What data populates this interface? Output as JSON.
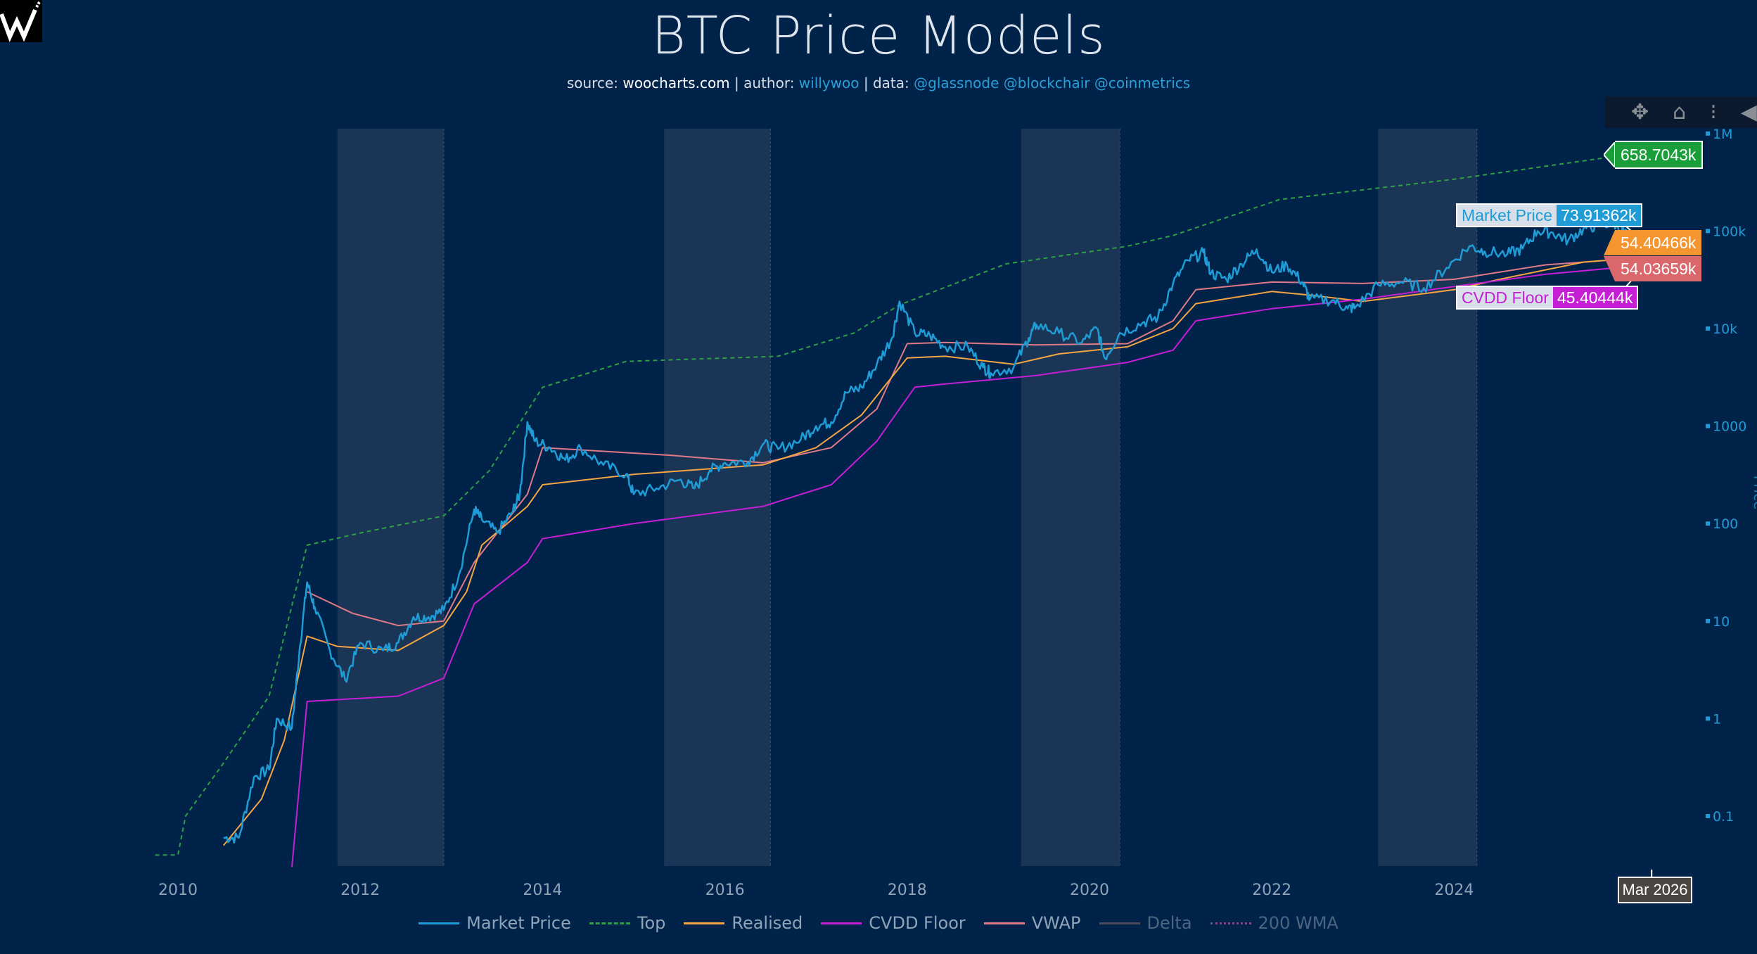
{
  "header": {
    "title": "BTC Price Models",
    "subtitle": {
      "source_label": "source:",
      "source": "woocharts.com",
      "author_label": "author:",
      "author": "willywoo",
      "data_label": "data:",
      "data_sources": "@glassnode @blockchair @coinmetrics"
    }
  },
  "toolbar": {
    "icons": [
      "move-icon",
      "home-icon",
      "spike-lines-icon",
      "collapse-arrow-icon"
    ]
  },
  "colors": {
    "background": "#01234a",
    "band": "#1b3556",
    "market_price": "#1f9bd6",
    "top": "#2ea043",
    "realised": "#f5a542",
    "cvdd": "#c51fd6",
    "vwap": "#e07a86",
    "delta": "#5a5a6a",
    "wma200": "#a050a0"
  },
  "chart_data": {
    "type": "line",
    "title": "BTC Price Models",
    "ylabel": "Price",
    "yscale": "log",
    "ylim": [
      0.03,
      1500000
    ],
    "xlim": [
      "2009-06",
      "2026-09"
    ],
    "x_ticks": [
      "2010",
      "2012",
      "2014",
      "2016",
      "2018",
      "2020",
      "2022",
      "2024"
    ],
    "y_ticks": [
      {
        "value": 0.1,
        "label": "0.1"
      },
      {
        "value": 1,
        "label": "1"
      },
      {
        "value": 10,
        "label": "10"
      },
      {
        "value": 100,
        "label": "100"
      },
      {
        "value": 1000,
        "label": "1000"
      },
      {
        "value": 10000,
        "label": "10k"
      },
      {
        "value": 100000,
        "label": "100k"
      },
      {
        "value": 1000000,
        "label": "1M"
      }
    ],
    "shaded_periods": [
      [
        "2011-10",
        "2012-12"
      ],
      [
        "2015-05",
        "2016-07"
      ],
      [
        "2019-04",
        "2020-05"
      ],
      [
        "2023-03",
        "2024-04"
      ]
    ],
    "legend_position": "bottom",
    "series": [
      {
        "name": "Market Price",
        "key": "market_price",
        "dash": "solid",
        "points": [
          [
            "2010-07",
            0.06
          ],
          [
            "2010-09",
            0.06
          ],
          [
            "2010-11",
            0.25
          ],
          [
            "2011-01",
            0.3
          ],
          [
            "2011-02",
            1
          ],
          [
            "2011-04",
            0.8
          ],
          [
            "2011-05",
            5
          ],
          [
            "2011-06",
            25
          ],
          [
            "2011-07",
            14
          ],
          [
            "2011-09",
            5
          ],
          [
            "2011-11",
            2.5
          ],
          [
            "2012-01",
            6
          ],
          [
            "2012-04",
            5
          ],
          [
            "2012-06",
            6
          ],
          [
            "2012-08",
            11
          ],
          [
            "2012-10",
            11
          ],
          [
            "2012-12",
            13
          ],
          [
            "2013-02",
            30
          ],
          [
            "2013-04",
            140
          ],
          [
            "2013-05",
            110
          ],
          [
            "2013-07",
            80
          ],
          [
            "2013-09",
            130
          ],
          [
            "2013-10",
            200
          ],
          [
            "2013-11",
            1100
          ],
          [
            "2013-12",
            700
          ],
          [
            "2014-02",
            600
          ],
          [
            "2014-04",
            450
          ],
          [
            "2014-06",
            600
          ],
          [
            "2014-09",
            400
          ],
          [
            "2014-12",
            320
          ],
          [
            "2015-01",
            200
          ],
          [
            "2015-04",
            230
          ],
          [
            "2015-07",
            280
          ],
          [
            "2015-09",
            230
          ],
          [
            "2015-11",
            350
          ],
          [
            "2016-01",
            420
          ],
          [
            "2016-04",
            430
          ],
          [
            "2016-06",
            650
          ],
          [
            "2016-08",
            580
          ],
          [
            "2016-11",
            730
          ],
          [
            "2017-01",
            1000
          ],
          [
            "2017-03",
            1100
          ],
          [
            "2017-05",
            2200
          ],
          [
            "2017-07",
            2500
          ],
          [
            "2017-09",
            4300
          ],
          [
            "2017-11",
            8000
          ],
          [
            "2017-12",
            19000
          ],
          [
            "2018-02",
            9000
          ],
          [
            "2018-04",
            8500
          ],
          [
            "2018-06",
            6500
          ],
          [
            "2018-09",
            6500
          ],
          [
            "2018-11",
            4000
          ],
          [
            "2018-12",
            3500
          ],
          [
            "2019-03",
            4000
          ],
          [
            "2019-05",
            8000
          ],
          [
            "2019-06",
            11000
          ],
          [
            "2019-09",
            9000
          ],
          [
            "2019-12",
            7200
          ],
          [
            "2020-02",
            10000
          ],
          [
            "2020-03",
            5000
          ],
          [
            "2020-05",
            9000
          ],
          [
            "2020-08",
            11500
          ],
          [
            "2020-10",
            13000
          ],
          [
            "2020-12",
            29000
          ],
          [
            "2021-02",
            50000
          ],
          [
            "2021-04",
            60000
          ],
          [
            "2021-05",
            37000
          ],
          [
            "2021-07",
            32000
          ],
          [
            "2021-09",
            46000
          ],
          [
            "2021-11",
            65000
          ],
          [
            "2022-01",
            38000
          ],
          [
            "2022-03",
            45000
          ],
          [
            "2022-05",
            30000
          ],
          [
            "2022-06",
            20000
          ],
          [
            "2022-09",
            19500
          ],
          [
            "2022-11",
            16000
          ],
          [
            "2022-12",
            16500
          ],
          [
            "2023-03",
            28000
          ],
          [
            "2023-06",
            30000
          ],
          [
            "2023-09",
            26000
          ],
          [
            "2023-12",
            42000
          ],
          [
            "2024-03",
            70000
          ],
          [
            "2024-05",
            62000
          ],
          [
            "2024-08",
            58000
          ],
          [
            "2024-10",
            66000
          ],
          [
            "2024-12",
            100000
          ],
          [
            "2025-02",
            96000
          ],
          [
            "2025-04",
            80000
          ],
          [
            "2025-06",
            105000
          ],
          [
            "2025-08",
            115000
          ],
          [
            "2025-10",
            120000
          ],
          [
            "2025-12",
            90000
          ],
          [
            "2026-02",
            70000
          ],
          [
            "2026-03",
            73913.62
          ]
        ]
      },
      {
        "name": "Top",
        "key": "top",
        "dash": "dashed",
        "points": [
          [
            "2009-10",
            0.04
          ],
          [
            "2010-01",
            0.04
          ],
          [
            "2010-02",
            0.1
          ],
          [
            "2010-07",
            0.35
          ],
          [
            "2011-01",
            1.7
          ],
          [
            "2011-06",
            60
          ],
          [
            "2012-01",
            80
          ],
          [
            "2012-12",
            120
          ],
          [
            "2013-06",
            350
          ],
          [
            "2014-01",
            2500
          ],
          [
            "2014-12",
            4600
          ],
          [
            "2016-08",
            5200
          ],
          [
            "2017-06",
            9000
          ],
          [
            "2017-12",
            17500
          ],
          [
            "2019-02",
            46000
          ],
          [
            "2020-06",
            70000
          ],
          [
            "2020-12",
            90000
          ],
          [
            "2022-02",
            210000
          ],
          [
            "2024-01",
            340000
          ],
          [
            "2026-03",
            658704.3
          ]
        ]
      },
      {
        "name": "Realised",
        "key": "realised",
        "dash": "solid",
        "points": [
          [
            "2010-07",
            0.05
          ],
          [
            "2010-12",
            0.15
          ],
          [
            "2011-03",
            0.6
          ],
          [
            "2011-06",
            7
          ],
          [
            "2011-10",
            5.5
          ],
          [
            "2012-06",
            5
          ],
          [
            "2012-12",
            9
          ],
          [
            "2013-03",
            20
          ],
          [
            "2013-05",
            60
          ],
          [
            "2013-11",
            150
          ],
          [
            "2014-01",
            250
          ],
          [
            "2015-01",
            320
          ],
          [
            "2016-06",
            400
          ],
          [
            "2017-01",
            600
          ],
          [
            "2017-07",
            1300
          ],
          [
            "2018-01",
            5000
          ],
          [
            "2018-06",
            5200
          ],
          [
            "2019-03",
            4300
          ],
          [
            "2019-09",
            5500
          ],
          [
            "2020-06",
            6500
          ],
          [
            "2020-12",
            10000
          ],
          [
            "2021-03",
            18000
          ],
          [
            "2022-01",
            24000
          ],
          [
            "2022-06",
            22000
          ],
          [
            "2023-01",
            19000
          ],
          [
            "2024-01",
            25000
          ],
          [
            "2024-07",
            32000
          ],
          [
            "2025-06",
            48000
          ],
          [
            "2026-03",
            54404.66
          ]
        ]
      },
      {
        "name": "CVDD Floor",
        "key": "cvdd",
        "dash": "solid",
        "points": [
          [
            "2011-04",
            0.03
          ],
          [
            "2011-06",
            1.5
          ],
          [
            "2012-06",
            1.7
          ],
          [
            "2012-12",
            2.6
          ],
          [
            "2013-04",
            15
          ],
          [
            "2013-11",
            40
          ],
          [
            "2014-01",
            70
          ],
          [
            "2015-01",
            100
          ],
          [
            "2016-06",
            150
          ],
          [
            "2017-03",
            250
          ],
          [
            "2017-09",
            700
          ],
          [
            "2018-02",
            2500
          ],
          [
            "2018-06",
            2700
          ],
          [
            "2019-06",
            3300
          ],
          [
            "2020-06",
            4500
          ],
          [
            "2020-12",
            6000
          ],
          [
            "2021-03",
            12000
          ],
          [
            "2022-01",
            16000
          ],
          [
            "2023-01",
            20000
          ],
          [
            "2024-01",
            27000
          ],
          [
            "2025-01",
            36000
          ],
          [
            "2026-03",
            45404.44
          ]
        ]
      },
      {
        "name": "VWAP",
        "key": "vwap",
        "dash": "solid",
        "points": [
          [
            "2011-06",
            20
          ],
          [
            "2011-12",
            12
          ],
          [
            "2012-06",
            9
          ],
          [
            "2012-12",
            10
          ],
          [
            "2013-04",
            40
          ],
          [
            "2013-11",
            200
          ],
          [
            "2014-01",
            600
          ],
          [
            "2015-06",
            500
          ],
          [
            "2016-06",
            420
          ],
          [
            "2017-03",
            600
          ],
          [
            "2017-09",
            1500
          ],
          [
            "2018-01",
            7000
          ],
          [
            "2018-06",
            7200
          ],
          [
            "2019-06",
            6800
          ],
          [
            "2020-06",
            7000
          ],
          [
            "2020-12",
            12000
          ],
          [
            "2021-03",
            25000
          ],
          [
            "2022-01",
            30000
          ],
          [
            "2023-01",
            29000
          ],
          [
            "2024-01",
            32000
          ],
          [
            "2025-01",
            45000
          ],
          [
            "2026-03",
            54036.59
          ]
        ]
      },
      {
        "name": "Delta",
        "key": "delta",
        "dash": "solid",
        "points": []
      },
      {
        "name": "200 WMA",
        "key": "wma200",
        "dash": "dotted",
        "points": []
      }
    ],
    "hover": {
      "date": "Mar 2026",
      "market_price": {
        "name": "Market Price",
        "value": "73.91362k"
      },
      "cvdd": {
        "name": "CVDD Floor",
        "value": "45.40444k"
      },
      "top": {
        "value": "658.7043k"
      },
      "realised": {
        "value": "54.40466k"
      },
      "vwap": {
        "value": "54.03659k"
      }
    }
  }
}
